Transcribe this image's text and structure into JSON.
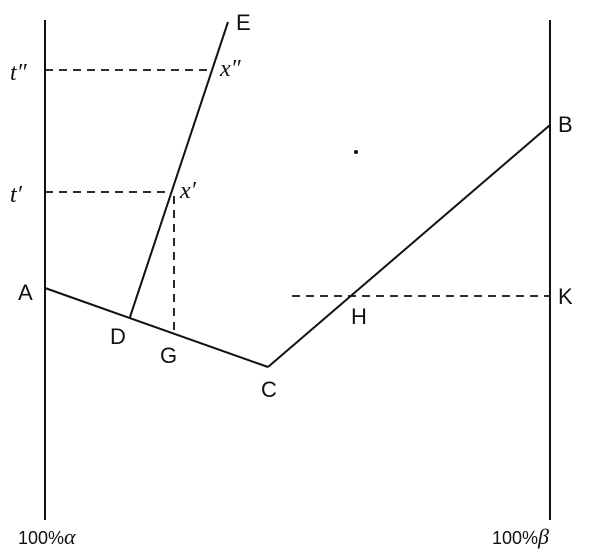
{
  "points": {
    "A": "A",
    "B": "B",
    "C": "C",
    "D": "D",
    "E": "E",
    "G": "G",
    "H": "H",
    "K": "K"
  },
  "temperatures": {
    "t1": "t′",
    "t2": "t″"
  },
  "compositions": {
    "x1": "x′",
    "x2": "x″"
  },
  "axis": {
    "left_prefix": "100%",
    "left_symbol": "α",
    "right_prefix": "100%",
    "right_symbol": "β"
  }
}
